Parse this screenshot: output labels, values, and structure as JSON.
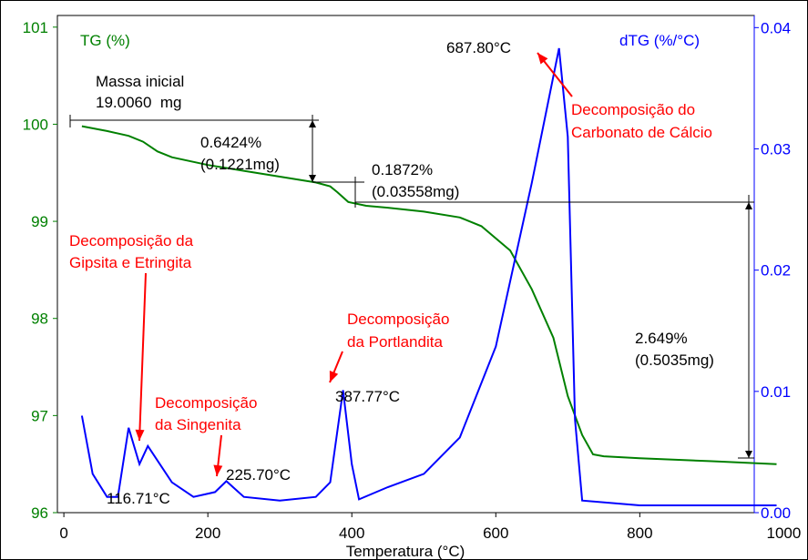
{
  "chart_data": {
    "type": "line",
    "x_label": "Temperatura (°C)",
    "xlim": [
      -9,
      959
    ],
    "xticks": [
      0,
      200,
      400,
      600,
      800,
      1000
    ],
    "ylim": [
      96,
      101.12
    ],
    "yticks": [
      96,
      97,
      98,
      99,
      100,
      101
    ],
    "y2lim": [
      0,
      0.041
    ],
    "y2ticks": [
      {
        "value": 0,
        "label": "0.00"
      },
      0.01,
      0.02,
      0.03,
      0.04
    ],
    "y_color": "#008000",
    "y2_color": "#0000ff",
    "series": [
      {
        "name": "TG (%)",
        "color": "#008000",
        "x": [
          25,
          60,
          90,
          110,
          130,
          150,
          200,
          250,
          300,
          350,
          370,
          380,
          395,
          420,
          450,
          500,
          550,
          580,
          620,
          650,
          680,
          700,
          720,
          735,
          750,
          800,
          900,
          990
        ],
        "values": [
          99.98,
          99.93,
          99.88,
          99.82,
          99.72,
          99.66,
          99.58,
          99.52,
          99.46,
          99.4,
          99.36,
          99.3,
          99.2,
          99.16,
          99.14,
          99.1,
          99.04,
          98.95,
          98.7,
          98.3,
          97.8,
          97.2,
          96.8,
          96.6,
          96.58,
          96.56,
          96.53,
          96.5
        ]
      },
      {
        "name": "dTG (%/°C)",
        "color": "#0000ff",
        "axis": "y2",
        "x": [
          25,
          40,
          60,
          75,
          90,
          105,
          116.71,
          150,
          180,
          210,
          225.7,
          250,
          300,
          350,
          370,
          387.77,
          400,
          410,
          450,
          500,
          550,
          600,
          650,
          687.8,
          700,
          710,
          720,
          800,
          990
        ],
        "values": [
          0.008,
          0.0032,
          0.0013,
          0.0013,
          0.007,
          0.004,
          0.0055,
          0.0025,
          0.0013,
          0.0017,
          0.0026,
          0.0013,
          0.001,
          0.0013,
          0.0025,
          0.0101,
          0.004,
          0.0011,
          0.0021,
          0.0032,
          0.0062,
          0.0137,
          0.0272,
          0.0383,
          0.031,
          0.0077,
          0.001,
          0.0006,
          0.0006
        ]
      }
    ],
    "annotations": [
      {
        "text": "Massa inicial",
        "color": "#000000"
      },
      {
        "text": "19.0060  mg",
        "color": "#000000"
      },
      {
        "text": "0.6424%",
        "color": "#000000"
      },
      {
        "text": "(0.1221mg)",
        "color": "#000000"
      },
      {
        "text": "0.1872%",
        "color": "#000000"
      },
      {
        "text": "(0.03558mg)",
        "color": "#000000"
      },
      {
        "text": "2.649%",
        "color": "#000000"
      },
      {
        "text": "(0.5035mg)",
        "color": "#000000"
      },
      {
        "text": "687.80°C",
        "color": "#000000"
      },
      {
        "text": "Decomposição do",
        "color": "#ff0000"
      },
      {
        "text": "Carbonato de Cálcio",
        "color": "#ff0000"
      },
      {
        "text": "Decomposição da",
        "color": "#ff0000"
      },
      {
        "text": "Gipsita e Etringita",
        "color": "#ff0000"
      },
      {
        "text": "Decomposição",
        "color": "#ff0000"
      },
      {
        "text": "da Singenita",
        "color": "#ff0000"
      },
      {
        "text": "225.70°C",
        "color": "#000000"
      },
      {
        "text": "116.71°C",
        "color": "#000000"
      },
      {
        "text": "Decomposição",
        "color": "#ff0000"
      },
      {
        "text": "da Portlandita",
        "color": "#ff0000"
      },
      {
        "text": "387.77°C",
        "color": "#000000"
      }
    ]
  }
}
